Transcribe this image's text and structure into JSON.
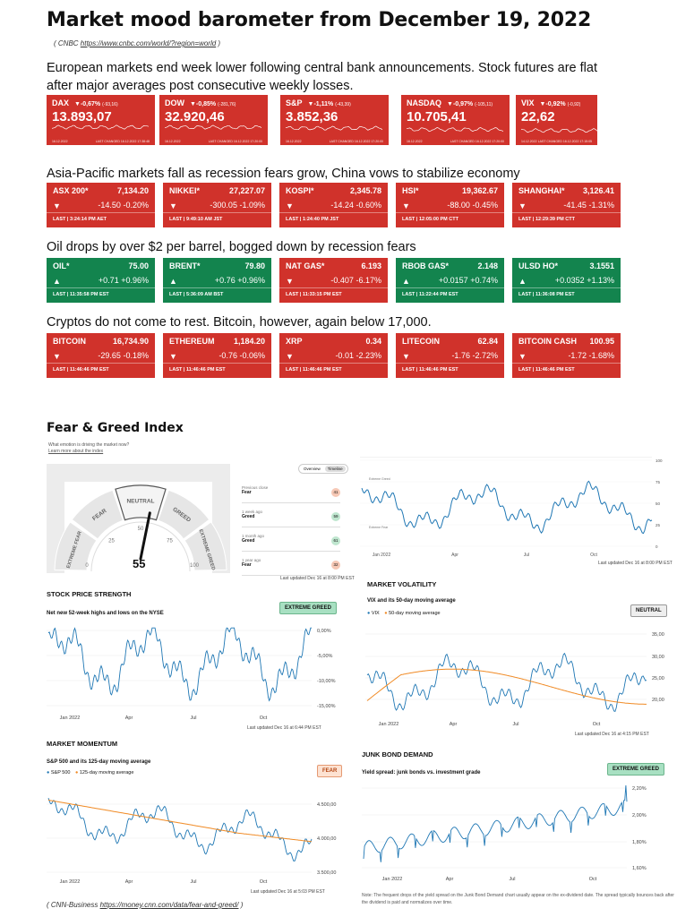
{
  "title": "Market mood barometer from December 19, 2022",
  "source1_prefix": "( CNBC ",
  "source1_link": "https://www.cnbc.com/world/?region=world",
  "source1_suffix": " )",
  "para_europe": "European markets end week lower following central bank announcements. Stock futures are flat after major averages post consecutive weekly losses.",
  "indices": [
    {
      "name": "DAX",
      "change": "▼-0,67%",
      "change_abs": "(-93,16)",
      "value": "13.893,07",
      "date_left": "16.12.2022",
      "date_right": "16.12.2022",
      "note": "LAST CHANGED 16.12.2022 17:38:48"
    },
    {
      "name": "DOW",
      "change": "▼-0,85%",
      "change_abs": "(-281,76)",
      "value": "32.920,46",
      "date_left": "16.12.2022",
      "date_right": "16.12.2022",
      "note": "LAST CHANGED 16.12.2022 17:20:00"
    },
    {
      "name": "S&P",
      "change": "▼-1,11%",
      "change_abs": "(-43,39)",
      "value": "3.852,36",
      "date_left": "16.12.2022",
      "date_right": "16.12.2022",
      "note": "LAST CHANGED 16.12.2022 17:20:00"
    },
    {
      "name": "NASDAQ",
      "change": "▼-0,97%",
      "change_abs": "(-105,11)",
      "value": "10.705,41",
      "date_left": "16.12.2022",
      "date_right": "16.12.2022",
      "note": "LAST CHANGED 16.12.2022 17:20:00"
    },
    {
      "name": "VIX",
      "change": "▼-0,92%",
      "change_abs": "(-0,92)",
      "value": "22,62",
      "date_left": "14.12.2022",
      "date_right": "16.12.2022",
      "note": "LAST CHANGED 16.12.2022 17:15:05"
    }
  ],
  "para_asia": "Asia-Pacific markets fall as recession fears grow, China vows to stabilize economy",
  "asia": [
    {
      "name": "ASX 200*",
      "value": "7,134.20",
      "arrow": "▼",
      "chg": "-14.50",
      "pct": "-0.20%",
      "last": "LAST | 3:24:14 PM AET"
    },
    {
      "name": "NIKKEI*",
      "value": "27,227.07",
      "arrow": "▼",
      "chg": "-300.05",
      "pct": "-1.09%",
      "last": "LAST | 9:49:10 AM JST"
    },
    {
      "name": "KOSPI*",
      "value": "2,345.78",
      "arrow": "▼",
      "chg": "-14.24",
      "pct": "-0.60%",
      "last": "LAST | 1:24:40 PM JST"
    },
    {
      "name": "HSI*",
      "value": "19,362.67",
      "arrow": "▼",
      "chg": "-88.00",
      "pct": "-0.45%",
      "last": "LAST | 12:05:00 PM CTT"
    },
    {
      "name": "SHANGHAI*",
      "value": "3,126.41",
      "arrow": "▼",
      "chg": "-41.45",
      "pct": "-1.31%",
      "last": "LAST | 12:29:39 PM CTT"
    }
  ],
  "para_oil": "Oil drops by over $2 per barrel, bogged down by recession fears",
  "oil": [
    {
      "name": "OIL*",
      "value": "75.00",
      "arrow": "▲",
      "chg": "+0.71",
      "pct": "+0.96%",
      "last": "LAST | 11:35:58 PM EST",
      "color": "green"
    },
    {
      "name": "BRENT*",
      "value": "79.80",
      "arrow": "▲",
      "chg": "+0.76",
      "pct": "+0.96%",
      "last": "LAST | 5:36:09 AM BST",
      "color": "green"
    },
    {
      "name": "NAT GAS*",
      "value": "6.193",
      "arrow": "▼",
      "chg": "-0.407",
      "pct": "-6.17%",
      "last": "LAST | 11:33:15 PM EST",
      "color": "red"
    },
    {
      "name": "RBOB GAS*",
      "value": "2.148",
      "arrow": "▲",
      "chg": "+0.0157",
      "pct": "+0.74%",
      "last": "LAST | 11:22:44 PM EST",
      "color": "green"
    },
    {
      "name": "ULSD HO*",
      "value": "3.1551",
      "arrow": "▲",
      "chg": "+0.0352",
      "pct": "+1.13%",
      "last": "LAST | 11:36:08 PM EST",
      "color": "green"
    }
  ],
  "para_crypto": "Cryptos do not come to rest. Bitcoin, however, again below 17,000.",
  "crypto": [
    {
      "name": "BITCOIN",
      "value": "16,734.90",
      "arrow": "▼",
      "chg": "-29.65",
      "pct": "-0.18%",
      "last": "LAST | 11:46:46 PM EST"
    },
    {
      "name": "ETHEREUM",
      "value": "1,184.20",
      "arrow": "▼",
      "chg": "-0.76",
      "pct": "-0.06%",
      "last": "LAST | 11:46:46 PM EST"
    },
    {
      "name": "XRP",
      "value": "0.34",
      "arrow": "▼",
      "chg": "-0.01",
      "pct": "-2.23%",
      "last": "LAST | 11:46:46 PM EST"
    },
    {
      "name": "LITECOIN",
      "value": "62.84",
      "arrow": "▼",
      "chg": "-1.76",
      "pct": "-2.72%",
      "last": "LAST | 11:46:46 PM EST"
    },
    {
      "name": "BITCOIN CASH",
      "value": "100.95",
      "arrow": "▼",
      "chg": "-1.72",
      "pct": "-1.68%",
      "last": "LAST | 11:46:46 PM EST"
    }
  ],
  "fg": {
    "title": "Fear & Greed Index",
    "q": "What emotion is driving the market now?",
    "learn": "Learn more about the index",
    "value": "55",
    "labels": {
      "extreme_fear": "EXTREME FEAR",
      "fear": "FEAR",
      "neutral": "NEUTRAL",
      "greed": "GREED",
      "extreme_greed": "EXTREME GREED"
    },
    "ticks": [
      "0",
      "25",
      "50",
      "75",
      "100"
    ],
    "tabs": [
      "Overview",
      "Timeline"
    ],
    "history": [
      {
        "when": "Previous close",
        "label": "Fear",
        "value": "41"
      },
      {
        "when": "1 week ago",
        "label": "Greed",
        "value": "59"
      },
      {
        "when": "1 month ago",
        "label": "Greed",
        "value": "61"
      },
      {
        "when": "1 year ago",
        "label": "Fear",
        "value": "32"
      }
    ],
    "updated": "Last updated Dec 16 at 8:00 PM EST",
    "timeline_legend": [
      "Extreme Greed",
      "Extreme Fear"
    ],
    "timeline_yticks": [
      "100",
      "75",
      "50",
      "25",
      "0"
    ],
    "timeline_xticks": [
      "Jan 2022",
      "Apr",
      "Jul",
      "Oct"
    ],
    "timeline_updated": "Last updated Dec 16 at 8:00 PM EST"
  },
  "sps": {
    "title": "STOCK PRICE STRENGTH",
    "sub": "Net new 52-week highs and lows on the NYSE",
    "badge": "EXTREME GREED",
    "yticks": [
      "0,00%",
      "-5,00%",
      "-10,00%",
      "-15,00%"
    ],
    "xticks": [
      "Jan 2022",
      "Apr",
      "Jul",
      "Oct"
    ],
    "updated": "Last updated Dec 16 at 6:44 PM EST"
  },
  "vol": {
    "title": "MARKET VOLATILITY",
    "sub": "VIX and its 50-day moving average",
    "legend": [
      "VIX",
      "50-day moving average"
    ],
    "badge": "NEUTRAL",
    "yticks": [
      "35,00",
      "30,00",
      "25,00",
      "20,00"
    ],
    "xticks": [
      "Jan 2022",
      "Apr",
      "Jul",
      "Oct"
    ],
    "updated": "Last updated Dec 16 at 4:15 PM EST"
  },
  "mom": {
    "title": "MARKET MOMENTUM",
    "sub": "S&P 500 and its 125-day moving average",
    "legend": [
      "S&P 500",
      "125-day moving average"
    ],
    "badge": "FEAR",
    "yticks": [
      "4.500,00",
      "4.000,00",
      "3.500,00"
    ],
    "xticks": [
      "Jan 2022",
      "Apr",
      "Jul",
      "Oct"
    ],
    "updated": "Last updated Dec 16 at 5:03 PM EST"
  },
  "junk": {
    "title": "JUNK BOND DEMAND",
    "sub": "Yield spread: junk bonds vs. investment grade",
    "badge": "EXTREME GREED",
    "yticks": [
      "2,20%",
      "2,00%",
      "1,80%",
      "1,60%"
    ],
    "xticks": [
      "Jan 2022",
      "Apr",
      "Jul",
      "Oct"
    ],
    "note": "Note: The frequent drops of the yield spread on the Junk Bond Demand chart usually appear on the ex-dividend date. The spread typically bounces back after the dividend is paid and normalizes over time."
  },
  "source2_prefix": "( CNN-Business ",
  "source2_link": "https://money.cnn.com/data/fear-and-greed/",
  "source2_suffix": " )",
  "colors": {
    "red": "#d0322b",
    "green": "#13844e",
    "blue_line": "#1f77b4",
    "orange_line": "#f08a24"
  }
}
